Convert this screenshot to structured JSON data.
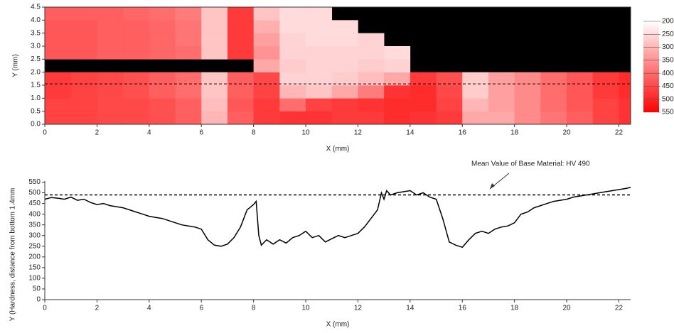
{
  "chart_data": [
    {
      "type": "heatmap",
      "xlabel": "X (mm)",
      "ylabel": "Y (mm)",
      "xlim": [
        0,
        22.45
      ],
      "ylim": [
        0,
        4.5
      ],
      "xticks": [
        0,
        2,
        4,
        6,
        8,
        10,
        12,
        14,
        16,
        18,
        20,
        22
      ],
      "yticks": [
        {
          "value": 0,
          "label": "0.0"
        },
        0.5,
        {
          "value": 1,
          "label": "1.0"
        },
        1.5,
        {
          "value": 2,
          "label": "2.0"
        },
        2.5,
        {
          "value": 3,
          "label": "3.0"
        },
        3.5,
        {
          "value": 4,
          "label": "4.0"
        },
        4.5
      ],
      "xbins": [
        0,
        1,
        2,
        3,
        4,
        5,
        6,
        7,
        8,
        9,
        10,
        11,
        12,
        13,
        14,
        15,
        16,
        17,
        18,
        19,
        20,
        21,
        22,
        22.45
      ],
      "ybins": [
        0,
        0.5,
        1,
        1.5,
        2,
        2.5,
        3,
        3.5,
        4,
        4.5
      ],
      "rows": [
        [
          460,
          460,
          450,
          450,
          440,
          420,
          300,
          420,
          470,
          480,
          480,
          470,
          470,
          490,
          480,
          470,
          320,
          320,
          360,
          390,
          420,
          460,
          480
        ],
        [
          460,
          460,
          450,
          450,
          440,
          420,
          290,
          430,
          470,
          400,
          460,
          470,
          480,
          490,
          490,
          460,
          300,
          330,
          360,
          400,
          430,
          460,
          480
        ],
        [
          470,
          460,
          450,
          440,
          420,
          400,
          280,
          420,
          460,
          300,
          280,
          320,
          380,
          480,
          490,
          450,
          270,
          330,
          360,
          400,
          430,
          470,
          490
        ],
        [
          470,
          460,
          450,
          440,
          420,
          400,
          280,
          420,
          450,
          260,
          260,
          270,
          290,
          320,
          470,
          440,
          270,
          330,
          360,
          400,
          430,
          470,
          490
        ],
        [
          null,
          null,
          null,
          null,
          null,
          null,
          null,
          null,
          320,
          270,
          260,
          260,
          270,
          260,
          null,
          null,
          null,
          null,
          null,
          null,
          null,
          null,
          null
        ],
        [
          430,
          430,
          420,
          420,
          410,
          400,
          280,
          470,
          350,
          260,
          260,
          260,
          260,
          250,
          null,
          null,
          null,
          null,
          null,
          null,
          null,
          null,
          null
        ],
        [
          430,
          430,
          420,
          420,
          410,
          390,
          280,
          470,
          330,
          260,
          250,
          250,
          260,
          null,
          null,
          null,
          null,
          null,
          null,
          null,
          null,
          null,
          null
        ],
        [
          430,
          430,
          420,
          420,
          410,
          390,
          280,
          470,
          310,
          250,
          250,
          250,
          null,
          null,
          null,
          null,
          null,
          null,
          null,
          null,
          null,
          null,
          null
        ],
        [
          420,
          420,
          420,
          410,
          400,
          380,
          280,
          470,
          280,
          250,
          250,
          null,
          null,
          null,
          null,
          null,
          null,
          null,
          null,
          null,
          null,
          null,
          null
        ]
      ],
      "clim": [
        200,
        550
      ],
      "cticks": [
        200,
        250,
        300,
        350,
        400,
        450,
        500,
        550
      ],
      "colors": [
        "#ffffff",
        "#ff0000"
      ],
      "background": "#000000",
      "hline": 1.55
    },
    {
      "type": "line",
      "xlabel": "X (mm)",
      "ylabel": "Y (Hardness, distance from bottom 1.4mm",
      "xlim": [
        0,
        22.45
      ],
      "ylim": [
        0,
        555
      ],
      "xticks": [
        0,
        2,
        4,
        6,
        8,
        10,
        12,
        14,
        16,
        18,
        20,
        22
      ],
      "yticks": [
        0,
        50,
        100,
        150,
        200,
        250,
        300,
        350,
        400,
        450,
        500,
        550
      ],
      "x": [
        0,
        0.25,
        0.5,
        0.75,
        1,
        1.25,
        1.5,
        1.75,
        2,
        2.25,
        2.5,
        2.75,
        3,
        3.25,
        3.5,
        3.75,
        4,
        4.25,
        4.5,
        4.75,
        5,
        5.25,
        5.5,
        5.75,
        6,
        6.25,
        6.5,
        6.75,
        7,
        7.25,
        7.5,
        7.75,
        8,
        8.1,
        8.2,
        8.3,
        8.5,
        8.75,
        9,
        9.25,
        9.5,
        9.75,
        10,
        10.25,
        10.5,
        10.75,
        11,
        11.25,
        11.5,
        11.75,
        12,
        12.25,
        12.5,
        12.75,
        12.9,
        13,
        13.1,
        13.25,
        13.5,
        13.75,
        14,
        14.25,
        14.5,
        14.75,
        15,
        15.25,
        15.5,
        15.75,
        16,
        16.25,
        16.5,
        16.75,
        17,
        17.25,
        17.5,
        17.75,
        18,
        18.25,
        18.5,
        18.75,
        19,
        19.25,
        19.5,
        19.75,
        20,
        20.25,
        20.5,
        20.75,
        21,
        21.25,
        21.5,
        21.75,
        22,
        22.25,
        22.45
      ],
      "series": [
        {
          "color": "#000000",
          "values": [
            470,
            478,
            475,
            470,
            480,
            465,
            470,
            455,
            445,
            450,
            440,
            435,
            430,
            420,
            410,
            400,
            390,
            385,
            380,
            370,
            360,
            350,
            345,
            340,
            330,
            280,
            255,
            250,
            260,
            290,
            340,
            420,
            445,
            460,
            300,
            255,
            280,
            260,
            280,
            265,
            290,
            300,
            320,
            290,
            300,
            270,
            285,
            300,
            290,
            300,
            310,
            340,
            380,
            420,
            500,
            470,
            510,
            490,
            500,
            505,
            510,
            490,
            500,
            480,
            470,
            380,
            270,
            255,
            245,
            280,
            310,
            320,
            310,
            330,
            340,
            345,
            360,
            400,
            410,
            430,
            440,
            450,
            460,
            465,
            470,
            480,
            485,
            490,
            495,
            500,
            505,
            510,
            515,
            520,
            525
          ]
        }
      ],
      "reference": {
        "value": 490,
        "label": "Mean Value of Base Material: HV 490"
      }
    }
  ]
}
